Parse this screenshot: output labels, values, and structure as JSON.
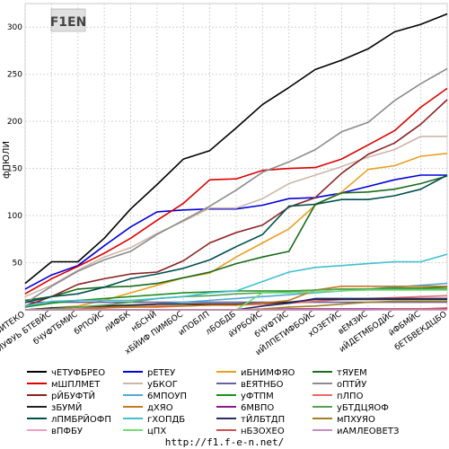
{
  "logo_text": "F1EN",
  "footer_url": "http://f1.f-e-n.net/",
  "chart_data": {
    "type": "line",
    "title": "",
    "xlabel": "",
    "ylabel": "фПЮЛИ",
    "ylim": [
      0,
      325
    ],
    "yticks": [
      50,
      100,
      150,
      200,
      250,
      300
    ],
    "grid": true,
    "legend_position": "bottom",
    "categories": [
      "вВИТЕКО",
      "вХДИУФУЬ БТЕВЙС",
      "бЧУФТБМИС",
      "бРПОЙС",
      "лИФБК",
      "нБСНЙ",
      "хБЙИФ ПИМБОС",
      "иПОБЛП",
      "лБОБДБ",
      "йУРБОЙС",
      "бЧУФТЙС",
      "иЙЛПЕТИФБОЙС",
      "хОЗЕТЙС",
      "вЕМЗИС",
      "иЙДЕТМБОДЙС",
      "йФБМЙС",
      "бЕТБВЕКДЦБО"
    ],
    "series": [
      {
        "name": "чЕТУФБРЕО",
        "color": "#000000",
        "values": [
          28,
          51,
          51,
          76,
          107,
          133,
          160,
          169,
          193,
          218,
          236,
          255,
          265,
          277,
          295,
          303,
          314
        ]
      },
      {
        "name": "рЕТЕУ",
        "color": "#0000dd",
        "values": [
          22,
          37,
          47,
          68,
          88,
          104,
          106,
          107,
          107,
          111,
          118,
          119,
          124,
          131,
          138,
          143,
          143
        ]
      },
      {
        "name": "иБНИМФЯО",
        "color": "#e8a020",
        "values": [
          0,
          2,
          4,
          10,
          18,
          26,
          34,
          39,
          56,
          71,
          86,
          111,
          125,
          149,
          153,
          163,
          166
        ]
      },
      {
        "name": "тЯУЕМ",
        "color": "#1a6b1a",
        "values": [
          10,
          14,
          22,
          24,
          25,
          28,
          34,
          40,
          49,
          56,
          62,
          112,
          124,
          125,
          128,
          134,
          142
        ]
      },
      {
        "name": "мШПЛМЕТ",
        "color": "#dd0000",
        "values": [
          17,
          33,
          46,
          60,
          76,
          95,
          113,
          138,
          139,
          148,
          150,
          151,
          160,
          175,
          190,
          215,
          235
        ]
      },
      {
        "name": "уБКОГ",
        "color": "#cdb6a8",
        "values": [
          14,
          26,
          42,
          56,
          66,
          81,
          94,
          108,
          108,
          118,
          134,
          143,
          152,
          162,
          170,
          184,
          184
        ]
      },
      {
        "name": "вЕЯТНБО",
        "color": "#6b5fa0",
        "values": [
          8,
          8,
          8,
          8,
          8,
          8,
          8,
          8,
          8,
          8,
          8,
          8,
          8,
          8,
          8,
          8,
          8
        ]
      },
      {
        "name": "оПТЙУ",
        "color": "#8c8c8c",
        "values": [
          7,
          25,
          41,
          53,
          62,
          80,
          95,
          110,
          127,
          146,
          157,
          170,
          189,
          199,
          222,
          240,
          256
        ]
      },
      {
        "name": "рЙБУФТЙ",
        "color": "#8b2222",
        "values": [
          4,
          14,
          27,
          33,
          38,
          40,
          52,
          71,
          82,
          90,
          109,
          119,
          145,
          165,
          177,
          197,
          223
        ]
      },
      {
        "name": "6МПОУП",
        "color": "#50a8d8",
        "values": [
          0,
          0,
          0,
          2,
          4,
          6,
          8,
          10,
          12,
          14,
          16,
          18,
          20,
          22,
          24,
          26,
          28
        ]
      },
      {
        "name": "уФТПМ",
        "color": "#1e8f1e",
        "values": [
          3,
          7,
          10,
          12,
          14,
          16,
          18,
          19,
          20,
          20,
          20,
          21,
          22,
          22,
          23,
          23,
          24
        ]
      },
      {
        "name": "пЛПО",
        "color": "#e86a6a",
        "values": [
          0,
          1,
          3,
          3,
          3,
          4,
          4,
          5,
          5,
          6,
          7,
          9,
          11,
          12,
          13,
          14,
          15
        ]
      },
      {
        "name": "зБУМЙ",
        "color": "#222222",
        "values": [
          0,
          2,
          3,
          4,
          5,
          6,
          6,
          6,
          6,
          7,
          8,
          11,
          11,
          11,
          11,
          11,
          11
        ]
      },
      {
        "name": "дХЯО",
        "color": "#c8781e",
        "values": [
          0,
          0,
          1,
          2,
          3,
          3,
          4,
          5,
          5,
          7,
          10,
          21,
          25,
          25,
          25,
          25,
          25
        ]
      },
      {
        "name": "6МВПО",
        "color": "#8a1a8a",
        "values": [
          0,
          0,
          0,
          0,
          0,
          0,
          0,
          0,
          0,
          0,
          1,
          1,
          1,
          1,
          1,
          1,
          1
        ]
      },
      {
        "name": "уБТДЦЯОФ",
        "color": "#55a055",
        "values": [
          0,
          1,
          3,
          5,
          8,
          12,
          14,
          15,
          17,
          18,
          19,
          21,
          22,
          22,
          22,
          22,
          22
        ]
      },
      {
        "name": "лПМБРЙОФП",
        "color": "#005050",
        "values": [
          8,
          14,
          17,
          24,
          33,
          38,
          44,
          53,
          67,
          80,
          110,
          112,
          117,
          117,
          121,
          128,
          143
        ]
      },
      {
        "name": "гХОПДБ",
        "color": "#40c0d0",
        "values": [
          4,
          9,
          10,
          10,
          10,
          12,
          14,
          18,
          20,
          30,
          40,
          45,
          47,
          49,
          51,
          51,
          59
        ]
      },
      {
        "name": "тЙЛБТДП",
        "color": "#2a2a6a",
        "values": [
          0,
          0,
          0,
          0,
          0,
          0,
          0,
          0,
          0,
          4,
          7,
          12,
          12,
          12,
          12,
          12,
          12
        ]
      },
      {
        "name": "мПХУЯО",
        "color": "#a08020",
        "values": [
          0,
          0,
          0,
          0,
          0,
          0,
          0,
          0,
          0,
          1,
          3,
          4,
          6,
          8,
          9,
          9,
          9
        ]
      },
      {
        "name": "вПФБУ",
        "color": "#f0a0c0",
        "values": [
          0,
          0,
          0,
          0,
          0,
          0,
          0,
          0,
          0,
          0,
          0,
          0,
          0,
          0,
          0,
          0,
          0
        ]
      },
      {
        "name": "цПХ",
        "color": "#70e070",
        "values": [
          0,
          0,
          0,
          0,
          0,
          0,
          0,
          0,
          0,
          18,
          18,
          19,
          20,
          21,
          21,
          21,
          21
        ]
      },
      {
        "name": "нБЗОХЕО",
        "color": "#d05050",
        "values": [
          0,
          0,
          0,
          0,
          0,
          0,
          0,
          0,
          0,
          0,
          0,
          0,
          0,
          0,
          1,
          1,
          2
        ]
      },
      {
        "name": "иАМЛЕОВЕТЗ",
        "color": "#c090c0",
        "values": [
          0,
          0,
          0,
          0,
          0,
          0,
          0,
          0,
          0,
          0,
          0,
          0,
          0,
          0,
          0,
          0,
          0
        ]
      }
    ]
  }
}
